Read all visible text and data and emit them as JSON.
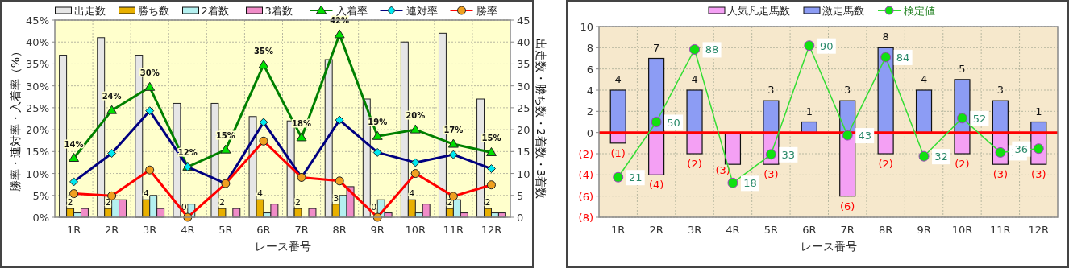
{
  "chart_data": [
    {
      "type": "bar",
      "xlabel": "レース番号",
      "ylabel": "勝率・連対率・入着率（%）",
      "y2label": "出走数・勝ち数・2着数・3着数",
      "categories": [
        "1R",
        "2R",
        "3R",
        "4R",
        "5R",
        "6R",
        "7R",
        "8R",
        "9R",
        "10R",
        "11R",
        "12R"
      ],
      "ylim": [
        0,
        45
      ],
      "yticks": [
        {
          "value": 0,
          "label": "0%"
        },
        {
          "value": 5,
          "label": "5%"
        },
        {
          "value": 10,
          "label": "10%"
        },
        {
          "value": 15,
          "label": "15%"
        },
        {
          "value": 20,
          "label": "20%"
        },
        {
          "value": 25,
          "label": "25%"
        },
        {
          "value": 30,
          "label": "30%"
        },
        {
          "value": 35,
          "label": "35%"
        },
        {
          "value": 40,
          "label": "40%"
        },
        {
          "value": 45,
          "label": "45%"
        }
      ],
      "y2lim": [
        0,
        45
      ],
      "y2ticks": [
        0,
        5,
        10,
        15,
        20,
        25,
        30,
        35,
        40,
        45
      ],
      "grid": true,
      "legend": "top",
      "series": [
        {
          "name": "出走数",
          "type": "bar",
          "axis": "y2",
          "color": "#e6e6e6",
          "values": [
            37,
            41,
            37,
            26,
            26,
            23,
            22,
            36,
            27,
            40,
            42,
            27
          ]
        },
        {
          "name": "勝ち数",
          "type": "bar",
          "axis": "y2",
          "color": "#e8b000",
          "values": [
            2,
            2,
            4,
            0,
            2,
            4,
            2,
            3,
            0,
            4,
            2,
            2
          ],
          "value_labels": [
            "2",
            "2",
            "4",
            "0",
            "2",
            "4",
            "2",
            "3",
            "0",
            "4",
            "2",
            "2"
          ]
        },
        {
          "name": "2着数",
          "type": "bar",
          "axis": "y2",
          "color": "#b4f0f0",
          "values": [
            1,
            4,
            5,
            3,
            0,
            1,
            0,
            5,
            4,
            1,
            4,
            1
          ]
        },
        {
          "name": "3着数",
          "type": "bar",
          "axis": "y2",
          "color": "#f08cc8",
          "values": [
            2,
            4,
            2,
            0,
            2,
            3,
            2,
            7,
            1,
            3,
            1,
            1
          ]
        },
        {
          "name": "入着率",
          "type": "line",
          "axis": "y",
          "color": "#008000",
          "marker": "triangle",
          "values": [
            13.5,
            24.4,
            29.7,
            11.5,
            15.4,
            34.8,
            18.2,
            41.7,
            18.5,
            20,
            16.7,
            14.8
          ],
          "value_labels": [
            "14%",
            "24%",
            "30%",
            "12%",
            "15%",
            "35%",
            "18%",
            "42%",
            "19%",
            "20%",
            "17%",
            "15%"
          ]
        },
        {
          "name": "連対率",
          "type": "line",
          "axis": "y",
          "color": "#000080",
          "marker": "diamond",
          "values": [
            8.1,
            14.6,
            24.3,
            11.5,
            7.7,
            21.7,
            9.1,
            22.2,
            14.8,
            12.5,
            14.3,
            11.1
          ]
        },
        {
          "name": "勝率",
          "type": "line",
          "axis": "y",
          "color": "#ff0000",
          "marker": "circle",
          "values": [
            5.4,
            4.9,
            10.8,
            0,
            7.7,
            17.4,
            9.1,
            8.3,
            0,
            10,
            4.8,
            7.4
          ]
        }
      ]
    },
    {
      "type": "bar",
      "stacked": true,
      "xlabel": "レース番号",
      "categories": [
        "1R",
        "2R",
        "3R",
        "4R",
        "5R",
        "6R",
        "7R",
        "8R",
        "9R",
        "10R",
        "11R",
        "12R"
      ],
      "ylim": [
        -8,
        10
      ],
      "yticks": [
        {
          "value": -8,
          "label": "(8)"
        },
        {
          "value": -6,
          "label": "(6)"
        },
        {
          "value": -4,
          "label": "(4)"
        },
        {
          "value": -2,
          "label": "(2)"
        },
        0,
        2,
        4,
        6,
        8,
        10
      ],
      "y2lim": [
        0,
        100
      ],
      "grid": true,
      "legend": "top",
      "ref_lines": [
        {
          "axis": "y",
          "value": 0,
          "color": "#ff0000"
        }
      ],
      "series": [
        {
          "name": "人気凡走馬数",
          "type": "bar",
          "color": "#f4a0f4",
          "values": [
            -1,
            -4,
            -2,
            -3,
            -3,
            0,
            -6,
            -2,
            0,
            -2,
            -3,
            -3
          ],
          "value_labels": [
            "(1)",
            "(4)",
            "(2)",
            "(3)",
            "(3)",
            null,
            "(6)",
            "(2)",
            null,
            "(2)",
            "(3)",
            "(3)"
          ]
        },
        {
          "name": "激走馬数",
          "type": "bar",
          "color": "#8c9cf4",
          "values": [
            4,
            7,
            4,
            0,
            3,
            1,
            3,
            8,
            4,
            5,
            3,
            1
          ],
          "value_labels": [
            "4",
            "7",
            "4",
            null,
            "3",
            "1",
            "3",
            "8",
            "4",
            "5",
            "3",
            "1"
          ]
        },
        {
          "name": "検定値",
          "type": "line",
          "axis": "y2",
          "color": "#33dd33",
          "marker": "circle",
          "data_labels": true,
          "values": [
            21,
            50,
            88,
            18,
            33,
            90,
            43,
            84,
            32,
            52,
            34,
            36
          ]
        }
      ]
    }
  ]
}
